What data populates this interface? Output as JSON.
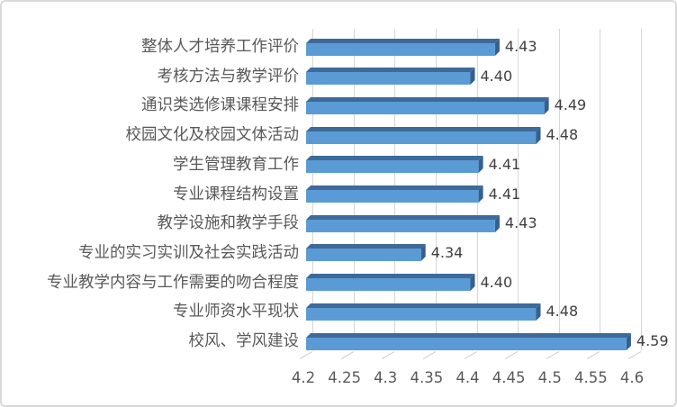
{
  "chart_data": {
    "type": "bar",
    "orientation": "horizontal",
    "style": "3d",
    "title": "",
    "xlabel": "",
    "ylabel": "",
    "xlim": [
      4.2,
      4.6
    ],
    "grid": true,
    "legend": false,
    "categories": [
      "整体人才培养工作评价",
      "考核方法与教学评价",
      "通识类选修课课程安排",
      "校园文化及校园文体活动",
      "学生管理教育工作",
      "专业课程结构设置",
      "教学设施和教学手段",
      "专业的实习实训及社会实践活动",
      "专业教学内容与工作需要的吻合程度",
      "专业师资水平现状",
      "校风、学风建设"
    ],
    "values": [
      4.43,
      4.4,
      4.49,
      4.48,
      4.41,
      4.41,
      4.43,
      4.34,
      4.4,
      4.48,
      4.59
    ],
    "value_labels": [
      "4.43",
      "4.40",
      "4.49",
      "4.48",
      "4.41",
      "4.41",
      "4.43",
      "4.34",
      "4.40",
      "4.48",
      "4.59"
    ],
    "x_ticks": [
      4.2,
      4.25,
      4.3,
      4.35,
      4.4,
      4.45,
      4.5,
      4.55,
      4.6
    ],
    "x_tick_labels": [
      "4.2",
      "4.25",
      "4.3",
      "4.35",
      "4.4",
      "4.45",
      "4.5",
      "4.55",
      "4.6"
    ],
    "colors": {
      "bar_face": "#5B9BD5",
      "bar_top": "#3E6A99",
      "bar_end": "#35608D",
      "gridline": "#D6D6D6",
      "tick": "#C8C8C8",
      "axis_text": "#595959",
      "category_text": "#595959",
      "value_text": "#404040",
      "frame_border": "#D9D9D9",
      "background": "#FFFFFF"
    }
  }
}
